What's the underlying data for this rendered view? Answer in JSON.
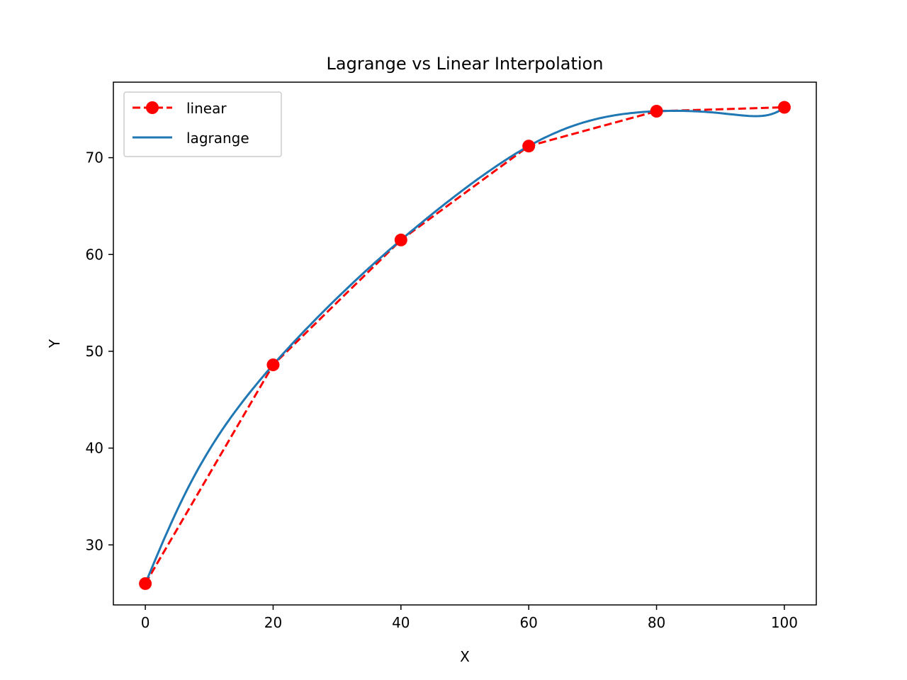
{
  "chart_data": {
    "type": "line",
    "title": "Lagrange vs Linear Interpolation",
    "xlabel": "X",
    "ylabel": "Y",
    "xlim": [
      -5,
      105
    ],
    "ylim": [
      23.8,
      77.8
    ],
    "xticks": [
      0,
      20,
      40,
      60,
      80,
      100
    ],
    "yticks": [
      30,
      40,
      50,
      60,
      70
    ],
    "grid": false,
    "legend_position": "top-left",
    "series": [
      {
        "name": "linear",
        "style": "dashed-with-circle-markers",
        "color": "#ff0000",
        "x": [
          0,
          20,
          40,
          60,
          80,
          100
        ],
        "y": [
          26.0,
          48.6,
          61.5,
          71.2,
          74.8,
          75.2
        ]
      },
      {
        "name": "lagrange",
        "style": "solid",
        "color": "#1f77b4",
        "x": [
          0,
          10,
          20,
          30,
          40,
          50,
          60,
          70,
          80,
          90,
          100
        ],
        "y": [
          26.0,
          39.8,
          48.6,
          55.5,
          61.5,
          66.8,
          71.2,
          73.9,
          74.8,
          74.6,
          75.2
        ]
      }
    ]
  }
}
